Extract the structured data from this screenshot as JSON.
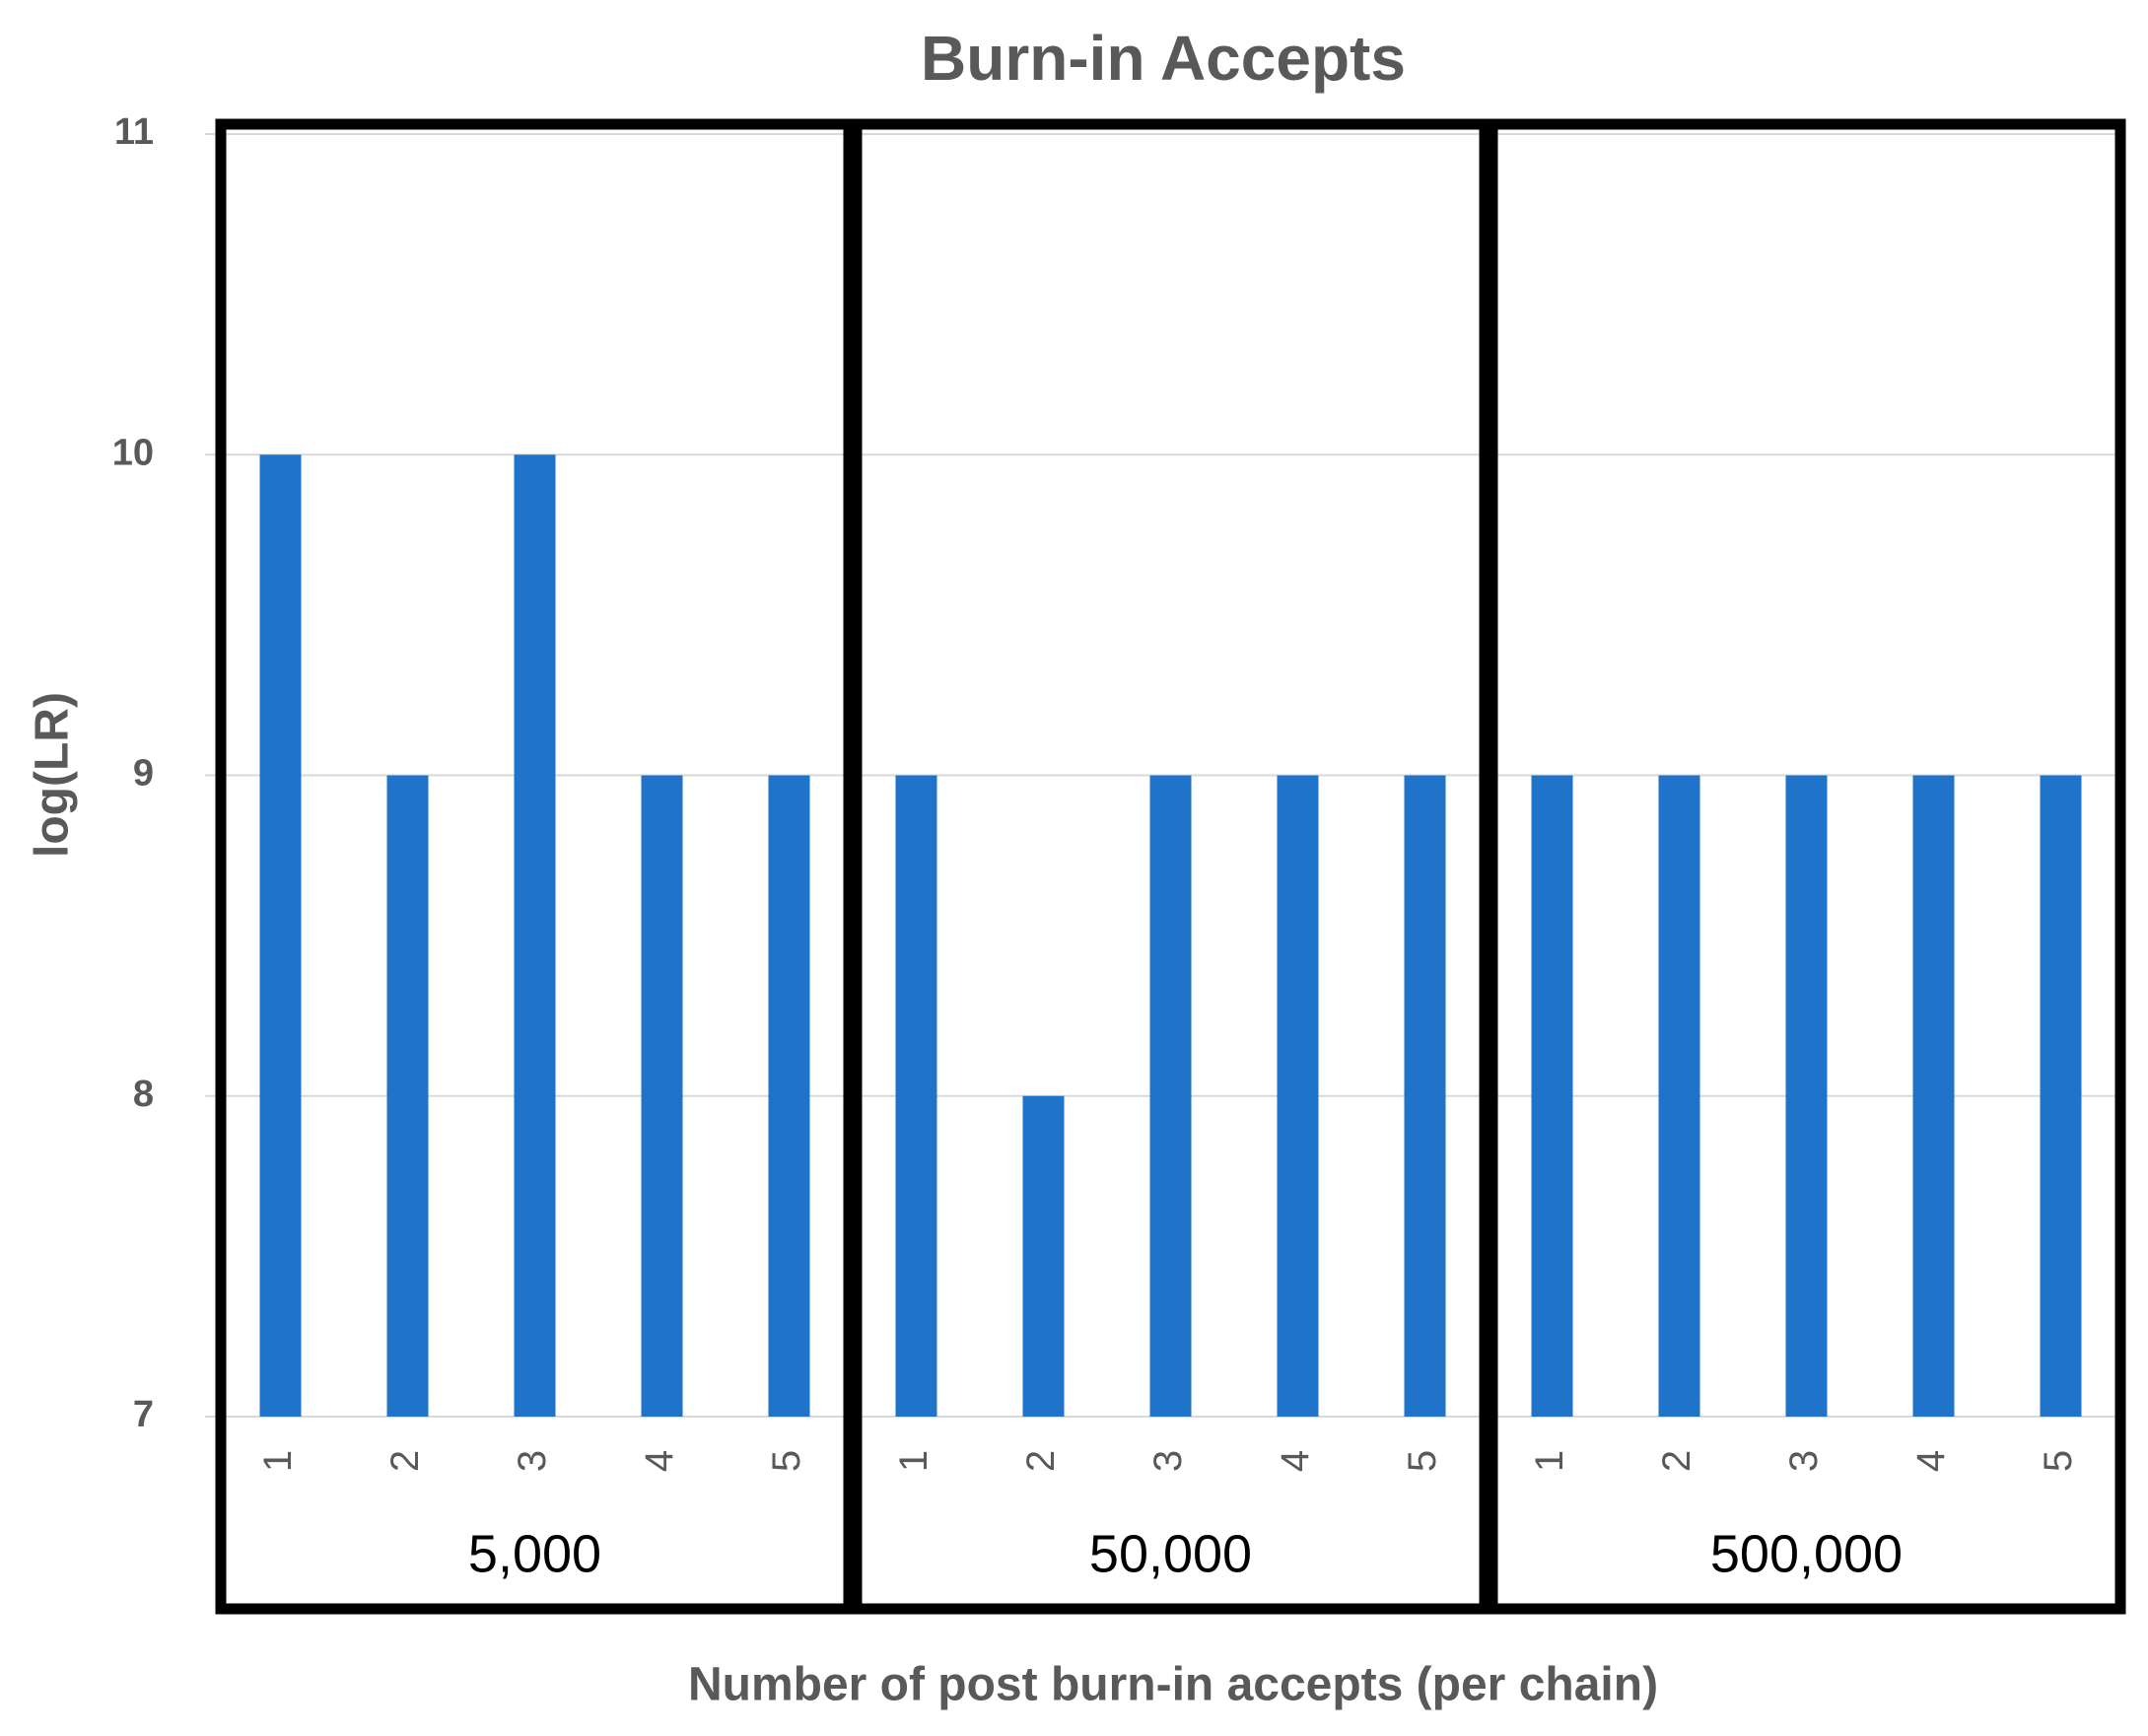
{
  "chart_data": {
    "type": "bar",
    "title": "Burn-in Accepts",
    "x_label": "Number of post burn-in accepts (per chain)",
    "y_label": "log(LR)",
    "groups": [
      "5,000",
      "50,000",
      "500,000"
    ],
    "categories": [
      "1",
      "2",
      "3",
      "4",
      "5",
      "1",
      "2",
      "3",
      "4",
      "5",
      "1",
      "2",
      "3",
      "4",
      "5"
    ],
    "values": [
      10,
      9,
      10,
      9,
      9,
      9,
      8,
      9,
      9,
      9,
      9,
      9,
      9,
      9,
      9
    ],
    "color": "#1f73c9",
    "ylim": [
      7,
      11
    ],
    "yticks": [
      7,
      8,
      9,
      10,
      11
    ],
    "grid": true
  }
}
